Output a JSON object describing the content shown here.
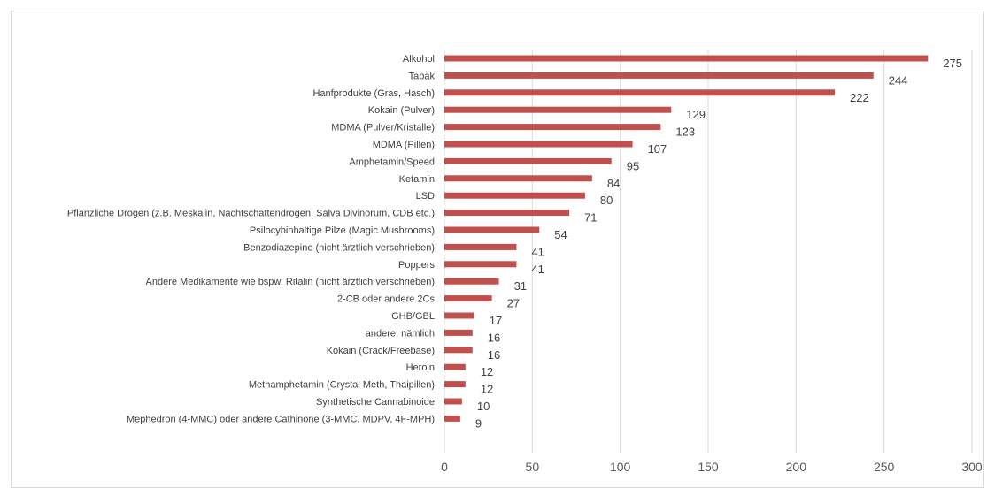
{
  "chart_data": {
    "type": "bar",
    "orientation": "horizontal",
    "categories": [
      "Alkohol",
      "Tabak",
      "Hanfprodukte (Gras, Hasch)",
      "Kokain (Pulver)",
      "MDMA (Pulver/Kristalle)",
      "MDMA (Pillen)",
      "Amphetamin/Speed",
      "Ketamin",
      "LSD",
      "Pflanzliche Drogen (z.B. Meskalin, Nachtschattendrogen, Salva Divinorum, CDB etc.)",
      "Psilocybinhaltige Pilze (Magic Mushrooms)",
      "Benzodiazepine (nicht ärztlich verschrieben)",
      "Poppers",
      "Andere Medikamente wie bspw. Ritalin (nicht ärztlich verschrieben)",
      "2-CB oder andere 2Cs",
      "GHB/GBL",
      "andere, nämlich",
      "Kokain (Crack/Freebase)",
      "Heroin",
      "Methamphetamin (Crystal Meth, Thaipillen)",
      "Synthetische Cannabinoide",
      "Mephedron (4-MMC) oder andere Cathinone (3-MMC, MDPV, 4F-MPH)"
    ],
    "values": [
      275,
      244,
      222,
      129,
      123,
      107,
      95,
      84,
      80,
      71,
      54,
      41,
      41,
      31,
      27,
      17,
      16,
      16,
      12,
      12,
      10,
      9
    ],
    "xlim": [
      0,
      300
    ],
    "xticks": [
      0,
      50,
      100,
      150,
      200,
      250,
      300
    ],
    "gridlines": "vertical",
    "bar_color": "#c0504d",
    "grid_color": "#d9d9d9",
    "data_labels": true
  }
}
